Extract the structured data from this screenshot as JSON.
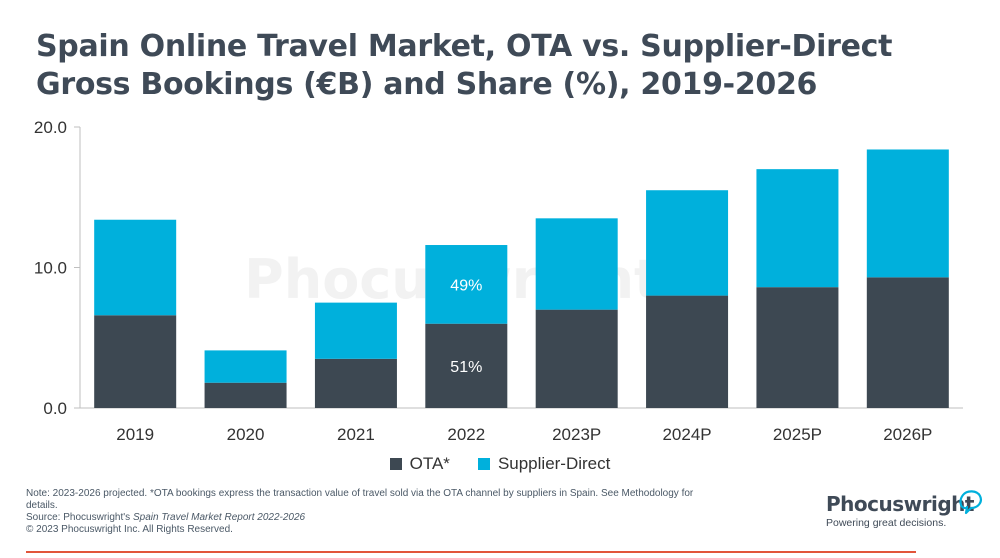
{
  "header": {
    "title": "Spain Online Travel Market, OTA vs. Supplier-Direct Gross Bookings (€B) and Share (%), 2019-2026"
  },
  "chart_data": {
    "type": "bar",
    "stacked": true,
    "categories": [
      "2019",
      "2020",
      "2021",
      "2022",
      "2023P",
      "2024P",
      "2025P",
      "2026P"
    ],
    "series": [
      {
        "name": "OTA*",
        "color": "#3d4852",
        "values": [
          6.6,
          1.8,
          3.5,
          6.0,
          7.0,
          8.0,
          8.6,
          9.3
        ]
      },
      {
        "name": "Supplier-Direct",
        "color": "#00b0dc",
        "values": [
          6.8,
          2.3,
          4.0,
          5.6,
          6.5,
          7.5,
          8.4,
          9.1
        ]
      }
    ],
    "ylim": [
      0,
      20
    ],
    "yticks": [
      "0.0",
      "10.0",
      "20.0"
    ],
    "grid": false,
    "legend": "bottom",
    "annotations": [
      {
        "category": "2022",
        "series": "Supplier-Direct",
        "text": "49%"
      },
      {
        "category": "2022",
        "series": "OTA*",
        "text": "51%"
      }
    ],
    "watermark": "Phocuswright"
  },
  "footer": {
    "note": "Note: 2023-2026 projected. *OTA bookings express the transaction value of travel sold via the OTA channel by suppliers in Spain. See Methodology for details.",
    "source_prefix": "Source: Phocuswright's ",
    "source_report": "Spain Travel Market Report 2022-2026",
    "copyright": "© 2023 Phocuswright Inc. All Rights Reserved."
  },
  "brand": {
    "name": "Phocuswright",
    "tagline": "Powering great decisions.",
    "mark_color": "#00b0dc"
  }
}
